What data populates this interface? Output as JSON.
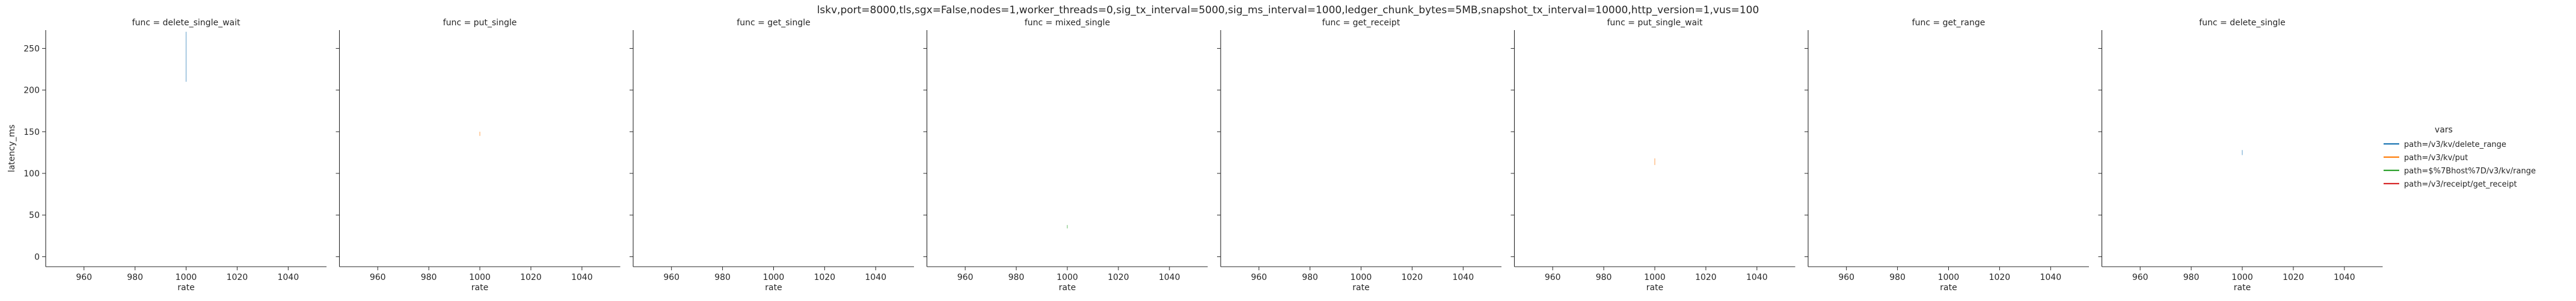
{
  "chart_data": {
    "type": "line",
    "title": "lskv,port=8000,tls,sgx=False,nodes=1,worker_threads=0,sig_tx_interval=5000,sig_ms_interval=1000,ledger_chunk_bytes=5MB,snapshot_tx_interval=10000,http_version=1,vus=100",
    "xlabel": "rate",
    "ylabel": "latency_ms",
    "xlim": [
      945,
      1055
    ],
    "ylim": [
      -12,
      272
    ],
    "xticks": [
      960,
      980,
      1000,
      1020,
      1040
    ],
    "yticks": [
      0,
      50,
      100,
      150,
      200,
      250
    ],
    "sharey": true,
    "legend": {
      "title": "vars",
      "placement": "right",
      "entries": [
        {
          "label": "path=/v3/kv/delete_range",
          "color": "#1f77b4"
        },
        {
          "label": "path=/v3/kv/put",
          "color": "#ff7f0e"
        },
        {
          "label": "path=$%7Bhost%7D/v3/kv/range",
          "color": "#2ca02c"
        },
        {
          "label": "path=/v3/receipt/get_receipt",
          "color": "#d62728"
        }
      ]
    },
    "panels": [
      {
        "title": "func = delete_single_wait",
        "series": [
          {
            "color": "#1f77b4",
            "x": [
              1000,
              1000
            ],
            "y": [
              210,
              270
            ]
          }
        ]
      },
      {
        "title": "func = put_single",
        "series": [
          {
            "color": "#ff7f0e",
            "x": [
              1000,
              1000
            ],
            "y": [
              145,
              150
            ]
          }
        ]
      },
      {
        "title": "func = get_single",
        "series": []
      },
      {
        "title": "func = mixed_single",
        "series": [
          {
            "color": "#2ca02c",
            "x": [
              1000,
              1000
            ],
            "y": [
              34,
              38
            ]
          }
        ]
      },
      {
        "title": "func = get_receipt",
        "series": []
      },
      {
        "title": "func = put_single_wait",
        "series": [
          {
            "color": "#ff7f0e",
            "x": [
              1000,
              1000
            ],
            "y": [
              110,
              118
            ]
          }
        ]
      },
      {
        "title": "func = get_range",
        "series": []
      },
      {
        "title": "func = delete_single",
        "series": [
          {
            "color": "#1f77b4",
            "x": [
              1000,
              1000
            ],
            "y": [
              122,
              128
            ]
          }
        ]
      }
    ]
  }
}
